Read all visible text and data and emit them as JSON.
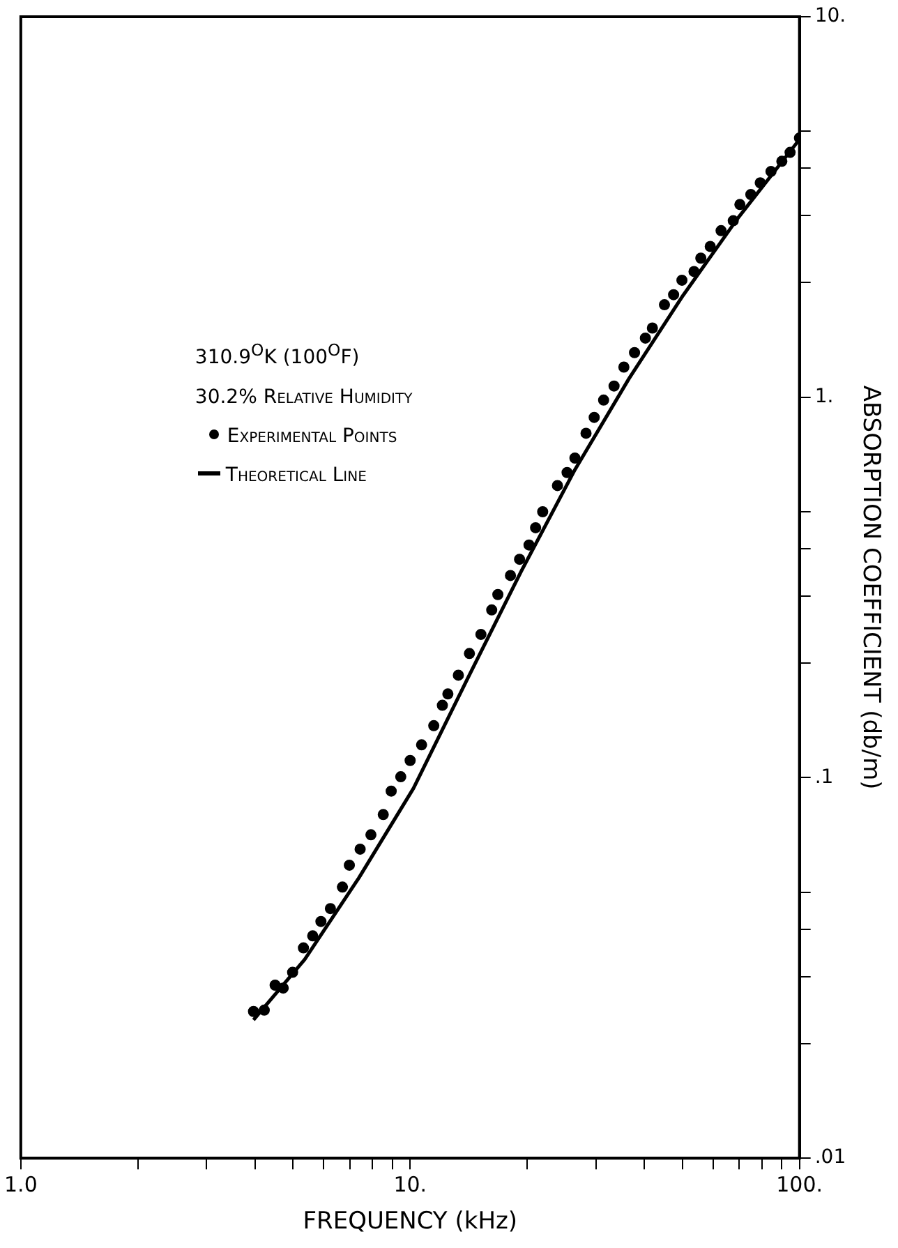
{
  "chart_data": {
    "type": "scatter",
    "xlabel": "FREQUENCY (kHz)",
    "ylabel": "ABSORPTION COEFFICIENT (db/m)",
    "annotations": [
      "310.9$^{O}$K (100$^{O}$F)",
      "30.2% Relative Humidity"
    ],
    "log": "xy",
    "xlim": [
      1,
      100
    ],
    "ylim": [
      0.01,
      10
    ],
    "xticks": [
      {
        "value": 1,
        "label": "1.0"
      },
      {
        "value": 2,
        "label": null
      },
      {
        "value": 3,
        "label": null
      },
      {
        "value": 4,
        "label": null
      },
      {
        "value": 5,
        "label": null
      },
      {
        "value": 6,
        "label": null
      },
      {
        "value": 7,
        "label": null
      },
      {
        "value": 8,
        "label": null
      },
      {
        "value": 9,
        "label": null
      },
      {
        "value": 10,
        "label": "10."
      },
      {
        "value": 20,
        "label": null
      },
      {
        "value": 30,
        "label": null
      },
      {
        "value": 40,
        "label": null
      },
      {
        "value": 50,
        "label": null
      },
      {
        "value": 60,
        "label": null
      },
      {
        "value": 70,
        "label": null
      },
      {
        "value": 80,
        "label": null
      },
      {
        "value": 90,
        "label": null
      },
      {
        "value": 100,
        "label": "100."
      }
    ],
    "yticks": [
      {
        "value": 0.01,
        "label": ".01"
      },
      {
        "value": 0.02,
        "label": null
      },
      {
        "value": 0.03,
        "label": null
      },
      {
        "value": 0.04,
        "label": null
      },
      {
        "value": 0.05,
        "label": null
      },
      {
        "value": 0.1,
        "label": ".1"
      },
      {
        "value": 0.2,
        "label": null
      },
      {
        "value": 0.3,
        "label": null
      },
      {
        "value": 0.4,
        "label": null
      },
      {
        "value": 0.5,
        "label": null
      },
      {
        "value": 1,
        "label": "1."
      },
      {
        "value": 2,
        "label": null
      },
      {
        "value": 3,
        "label": null
      },
      {
        "value": 4,
        "label": null
      },
      {
        "value": 5,
        "label": null
      },
      {
        "value": 10,
        "label": "10."
      }
    ],
    "legend": "top left",
    "series": [
      {
        "name": "Experimental Points",
        "type": "scatter",
        "marker": "circle",
        "color": "#000000",
        "x": [
          3.96,
          4.22,
          4.5,
          4.72,
          4.99,
          5.32,
          5.62,
          5.9,
          6.24,
          6.7,
          6.98,
          7.44,
          7.93,
          8.53,
          8.94,
          9.46,
          10.0,
          10.7,
          11.5,
          12.1,
          12.5,
          13.3,
          14.2,
          15.2,
          16.2,
          16.8,
          18.1,
          19.1,
          20.2,
          21.0,
          21.9,
          23.9,
          25.3,
          26.5,
          28.3,
          29.7,
          31.4,
          33.4,
          35.4,
          37.7,
          40.2,
          41.9,
          45.0,
          47.5,
          49.9,
          53.6,
          55.8,
          59.0,
          62.9,
          67.6,
          70.3,
          75.0,
          79.3,
          84.5,
          90.1,
          94.6,
          100
        ],
        "values": [
          0.0243,
          0.0245,
          0.0285,
          0.028,
          0.0308,
          0.0357,
          0.0384,
          0.0419,
          0.0453,
          0.0516,
          0.0589,
          0.0649,
          0.0708,
          0.08,
          0.0922,
          0.1006,
          0.111,
          0.122,
          0.137,
          0.155,
          0.166,
          0.186,
          0.212,
          0.238,
          0.276,
          0.303,
          0.34,
          0.375,
          0.409,
          0.454,
          0.5,
          0.586,
          0.634,
          0.692,
          0.804,
          0.885,
          0.983,
          1.07,
          1.2,
          1.31,
          1.43,
          1.52,
          1.75,
          1.86,
          2.03,
          2.14,
          2.32,
          2.49,
          2.74,
          2.91,
          3.21,
          3.41,
          3.66,
          3.92,
          4.17,
          4.4,
          4.8
        ]
      },
      {
        "name": "Theoretical Line",
        "type": "line",
        "line_style": "solid",
        "color": "#000000",
        "x": [
          3.96,
          5.36,
          7.38,
          10.2,
          14.0,
          19.3,
          26.5,
          36.5,
          50.2,
          69.2,
          100
        ],
        "values": [
          0.0231,
          0.0333,
          0.0545,
          0.0938,
          0.181,
          0.349,
          0.645,
          1.12,
          1.85,
          2.94,
          4.76
        ]
      }
    ]
  }
}
